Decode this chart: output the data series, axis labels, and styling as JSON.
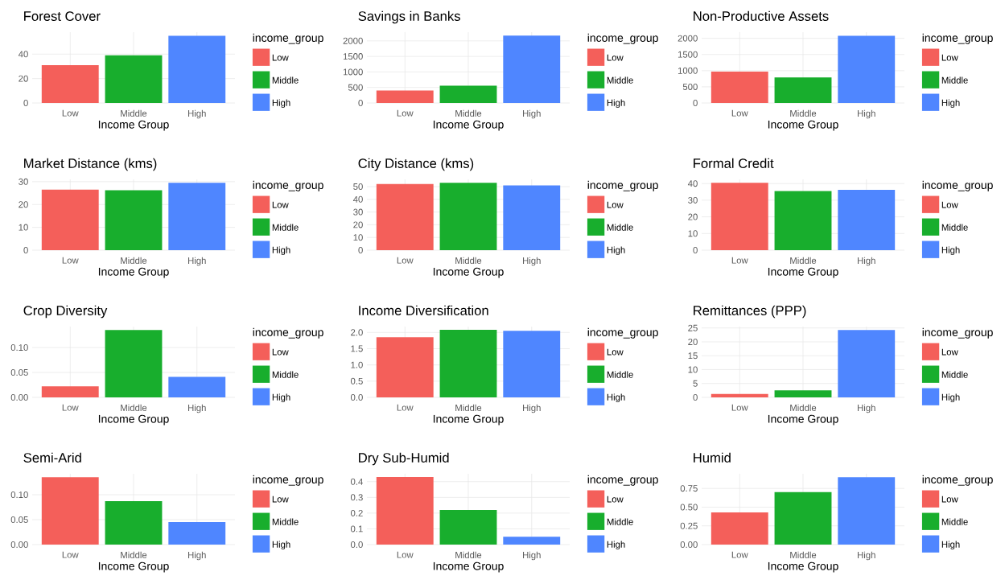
{
  "chart_data": [
    {
      "type": "bar",
      "title": "Forest Cover",
      "xlabel": "Income Group",
      "legend_title": "income_group",
      "categories": [
        "Low",
        "Middle",
        "High"
      ],
      "series": [
        {
          "name": "Low",
          "color": "#f45f5a",
          "values": [
            31,
            null,
            null
          ]
        },
        {
          "name": "Middle",
          "color": "#18ae2d",
          "values": [
            null,
            39,
            null
          ]
        },
        {
          "name": "High",
          "color": "#4f86ff",
          "values": [
            null,
            null,
            55
          ]
        }
      ],
      "ylim": [
        0,
        58
      ],
      "yticks": [
        0,
        20,
        40
      ],
      "grid": true,
      "legend": "right"
    },
    {
      "type": "bar",
      "title": "Savings in Banks",
      "xlabel": "Income Group",
      "legend_title": "income_group",
      "categories": [
        "Low",
        "Middle",
        "High"
      ],
      "series": [
        {
          "name": "Low",
          "color": "#f45f5a",
          "values": [
            400,
            null,
            null
          ]
        },
        {
          "name": "Middle",
          "color": "#18ae2d",
          "values": [
            null,
            560,
            null
          ]
        },
        {
          "name": "High",
          "color": "#4f86ff",
          "values": [
            null,
            null,
            2170
          ]
        }
      ],
      "ylim": [
        0,
        2280
      ],
      "yticks": [
        0,
        500,
        1000,
        1500,
        2000
      ],
      "grid": true,
      "legend": "right"
    },
    {
      "type": "bar",
      "title": "Non-Productive Assets",
      "xlabel": "Income Group",
      "legend_title": "income_group",
      "categories": [
        "Low",
        "Middle",
        "High"
      ],
      "series": [
        {
          "name": "Low",
          "color": "#f45f5a",
          "values": [
            970,
            null,
            null
          ]
        },
        {
          "name": "Middle",
          "color": "#18ae2d",
          "values": [
            null,
            790,
            null
          ]
        },
        {
          "name": "High",
          "color": "#4f86ff",
          "values": [
            null,
            null,
            2080
          ]
        }
      ],
      "ylim": [
        0,
        2190
      ],
      "yticks": [
        0,
        500,
        1000,
        1500,
        2000
      ],
      "grid": true,
      "legend": "right"
    },
    {
      "type": "bar",
      "title": "Market Distance (kms)",
      "xlabel": "Income Group",
      "legend_title": "income_group",
      "categories": [
        "Low",
        "Middle",
        "High"
      ],
      "series": [
        {
          "name": "Low",
          "color": "#f45f5a",
          "values": [
            26.5,
            null,
            null
          ]
        },
        {
          "name": "Middle",
          "color": "#18ae2d",
          "values": [
            null,
            26.2,
            null
          ]
        },
        {
          "name": "High",
          "color": "#4f86ff",
          "values": [
            null,
            null,
            29.5
          ]
        }
      ],
      "ylim": [
        0,
        31
      ],
      "yticks": [
        0,
        10,
        20,
        30
      ],
      "grid": true,
      "legend": "right"
    },
    {
      "type": "bar",
      "title": "City Distance (kms)",
      "xlabel": "Income Group",
      "legend_title": "income_group",
      "categories": [
        "Low",
        "Middle",
        "High"
      ],
      "series": [
        {
          "name": "Low",
          "color": "#f45f5a",
          "values": [
            52,
            null,
            null
          ]
        },
        {
          "name": "Middle",
          "color": "#18ae2d",
          "values": [
            null,
            53,
            null
          ]
        },
        {
          "name": "High",
          "color": "#4f86ff",
          "values": [
            null,
            null,
            51
          ]
        }
      ],
      "ylim": [
        0,
        55.7
      ],
      "yticks": [
        0,
        10,
        20,
        30,
        40,
        50
      ],
      "grid": true,
      "legend": "right"
    },
    {
      "type": "bar",
      "title": "Formal Credit",
      "xlabel": "Income Group",
      "legend_title": "income_group",
      "categories": [
        "Low",
        "Middle",
        "High"
      ],
      "series": [
        {
          "name": "Low",
          "color": "#f45f5a",
          "values": [
            40.5,
            null,
            null
          ]
        },
        {
          "name": "Middle",
          "color": "#18ae2d",
          "values": [
            null,
            35.5,
            null
          ]
        },
        {
          "name": "High",
          "color": "#4f86ff",
          "values": [
            null,
            null,
            36.2
          ]
        }
      ],
      "ylim": [
        0,
        42.5
      ],
      "yticks": [
        0,
        10,
        20,
        30,
        40
      ],
      "grid": true,
      "legend": "right"
    },
    {
      "type": "bar",
      "title": "Crop Diversity",
      "xlabel": "Income Group",
      "legend_title": "income_group",
      "categories": [
        "Low",
        "Middle",
        "High"
      ],
      "series": [
        {
          "name": "Low",
          "color": "#f45f5a",
          "values": [
            0.022,
            null,
            null
          ]
        },
        {
          "name": "Middle",
          "color": "#18ae2d",
          "values": [
            null,
            0.135,
            null
          ]
        },
        {
          "name": "High",
          "color": "#4f86ff",
          "values": [
            null,
            null,
            0.041
          ]
        }
      ],
      "ylim": [
        0,
        0.142
      ],
      "yticks": [
        {
          "value": 0,
          "label": "0.00"
        },
        {
          "value": 0.05,
          "label": "0.05"
        },
        {
          "value": 0.1,
          "label": "0.10"
        }
      ],
      "grid": true,
      "legend": "right"
    },
    {
      "type": "bar",
      "title": "Income Diversification",
      "xlabel": "Income Group",
      "legend_title": "income_group",
      "categories": [
        "Low",
        "Middle",
        "High"
      ],
      "series": [
        {
          "name": "Low",
          "color": "#f45f5a",
          "values": [
            1.85,
            null,
            null
          ]
        },
        {
          "name": "Middle",
          "color": "#18ae2d",
          "values": [
            null,
            2.08,
            null
          ]
        },
        {
          "name": "High",
          "color": "#4f86ff",
          "values": [
            null,
            null,
            2.05
          ]
        }
      ],
      "ylim": [
        0,
        2.18
      ],
      "yticks": [
        {
          "value": 0,
          "label": "0.0"
        },
        {
          "value": 0.5,
          "label": "0.5"
        },
        {
          "value": 1,
          "label": "1.0"
        },
        {
          "value": 1.5,
          "label": "1.5"
        },
        {
          "value": 2,
          "label": "2.0"
        }
      ],
      "grid": true,
      "legend": "right"
    },
    {
      "type": "bar",
      "title": "Remittances (PPP)",
      "xlabel": "Income Group",
      "legend_title": "income_group",
      "categories": [
        "Low",
        "Middle",
        "High"
      ],
      "series": [
        {
          "name": "Low",
          "color": "#f45f5a",
          "values": [
            1.2,
            null,
            null
          ]
        },
        {
          "name": "Middle",
          "color": "#18ae2d",
          "values": [
            null,
            2.5,
            null
          ]
        },
        {
          "name": "High",
          "color": "#4f86ff",
          "values": [
            null,
            null,
            24.3
          ]
        }
      ],
      "ylim": [
        0,
        25.5
      ],
      "yticks": [
        0,
        5,
        10,
        15,
        20,
        25
      ],
      "grid": true,
      "legend": "right"
    },
    {
      "type": "bar",
      "title": "Semi-Arid",
      "xlabel": "Income Group",
      "legend_title": "income_group",
      "categories": [
        "Low",
        "Middle",
        "High"
      ],
      "series": [
        {
          "name": "Low",
          "color": "#f45f5a",
          "values": [
            0.135,
            null,
            null
          ]
        },
        {
          "name": "Middle",
          "color": "#18ae2d",
          "values": [
            null,
            0.087,
            null
          ]
        },
        {
          "name": "High",
          "color": "#4f86ff",
          "values": [
            null,
            null,
            0.045
          ]
        }
      ],
      "ylim": [
        0,
        0.142
      ],
      "yticks": [
        {
          "value": 0,
          "label": "0.00"
        },
        {
          "value": 0.05,
          "label": "0.05"
        },
        {
          "value": 0.1,
          "label": "0.10"
        }
      ],
      "grid": true,
      "legend": "right"
    },
    {
      "type": "bar",
      "title": "Dry Sub-Humid",
      "xlabel": "Income Group",
      "legend_title": "income_group",
      "categories": [
        "Low",
        "Middle",
        "High"
      ],
      "series": [
        {
          "name": "Low",
          "color": "#f45f5a",
          "values": [
            0.43,
            null,
            null
          ]
        },
        {
          "name": "Middle",
          "color": "#18ae2d",
          "values": [
            null,
            0.22,
            null
          ]
        },
        {
          "name": "High",
          "color": "#4f86ff",
          "values": [
            null,
            null,
            0.05
          ]
        }
      ],
      "ylim": [
        0,
        0.45
      ],
      "yticks": [
        {
          "value": 0,
          "label": "0.0"
        },
        {
          "value": 0.1,
          "label": "0.1"
        },
        {
          "value": 0.2,
          "label": "0.2"
        },
        {
          "value": 0.3,
          "label": "0.3"
        },
        {
          "value": 0.4,
          "label": "0.4"
        }
      ],
      "grid": true,
      "legend": "right"
    },
    {
      "type": "bar",
      "title": "Humid",
      "xlabel": "Income Group",
      "legend_title": "income_group",
      "categories": [
        "Low",
        "Middle",
        "High"
      ],
      "series": [
        {
          "name": "Low",
          "color": "#f45f5a",
          "values": [
            0.43,
            null,
            null
          ]
        },
        {
          "name": "Middle",
          "color": "#18ae2d",
          "values": [
            null,
            0.7,
            null
          ]
        },
        {
          "name": "High",
          "color": "#4f86ff",
          "values": [
            null,
            null,
            0.9
          ]
        }
      ],
      "ylim": [
        0,
        0.945
      ],
      "yticks": [
        {
          "value": 0,
          "label": "0.00"
        },
        {
          "value": 0.25,
          "label": "0.25"
        },
        {
          "value": 0.5,
          "label": "0.50"
        },
        {
          "value": 0.75,
          "label": "0.75"
        }
      ],
      "grid": true,
      "legend": "right"
    }
  ]
}
